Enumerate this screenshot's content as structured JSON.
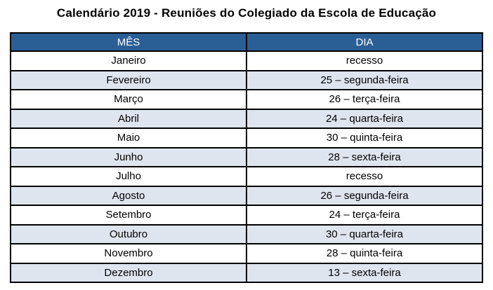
{
  "title": "Calendário 2019 - Reuniões do Colegiado da Escola de Educação",
  "table": {
    "headers": [
      "MÊS",
      "DIA"
    ],
    "rows": [
      [
        "Janeiro",
        "recesso"
      ],
      [
        "Fevereiro",
        "25 – segunda-feira"
      ],
      [
        "Março",
        "26 – terça-feira"
      ],
      [
        "Abril",
        "24 – quarta-feira"
      ],
      [
        "Maio",
        "30 – quinta-feira"
      ],
      [
        "Junho",
        "28 – sexta-feira"
      ],
      [
        "Julho",
        "recesso"
      ],
      [
        "Agosto",
        "26 – segunda-feira"
      ],
      [
        "Setembro",
        "24 – terça-feira"
      ],
      [
        "Outubro",
        "30 – quarta-feira"
      ],
      [
        "Novembro",
        "28 – quinta-feira"
      ],
      [
        "Dezembro",
        "13 – sexta-feira"
      ]
    ]
  },
  "colors": {
    "header_bg": "#2a5f96",
    "header_text": "#ffffff",
    "alt_row_bg": "#dfe5ef",
    "border": "#000000"
  }
}
